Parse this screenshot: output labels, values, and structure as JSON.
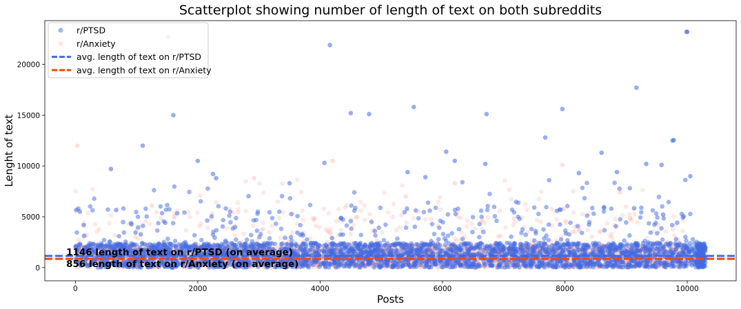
{
  "chart_data": {
    "type": "scatter",
    "title": "Scatterplot showing number of length of text on both subreddits",
    "xlabel": "Posts",
    "ylabel": "Lenght of text",
    "xlim": [
      -500,
      10800
    ],
    "ylim": [
      -1300,
      24300
    ],
    "x_ticks": [
      0,
      2000,
      4000,
      6000,
      8000,
      10000
    ],
    "y_ticks": [
      0,
      5000,
      10000,
      15000,
      20000
    ],
    "x_tick_labels": [
      "0",
      "2000",
      "4000",
      "6000",
      "8000",
      "10000"
    ],
    "y_tick_labels": [
      "0",
      "5000",
      "10000",
      "15000",
      "20000"
    ],
    "grid": false,
    "legend_position": "top-left",
    "series": [
      {
        "name": "r/PTSD",
        "kind": "scatter",
        "color": "#4169e1",
        "n_points": 10300,
        "notable_points": [
          [
            1520,
            22700
          ],
          [
            4160,
            21900
          ],
          [
            9990,
            23200
          ],
          [
            10000,
            23200
          ],
          [
            9170,
            17700
          ],
          [
            1600,
            15000
          ],
          [
            4500,
            15200
          ],
          [
            4800,
            15100
          ],
          [
            5530,
            15800
          ],
          [
            6720,
            15100
          ],
          [
            7960,
            15600
          ],
          [
            7680,
            12800
          ],
          [
            9760,
            12500
          ],
          [
            9780,
            12550
          ],
          [
            1100,
            12000
          ],
          [
            6060,
            11400
          ],
          [
            8600,
            11300
          ],
          [
            6200,
            10500
          ],
          [
            4070,
            10300
          ],
          [
            2000,
            10500
          ],
          [
            580,
            9700
          ],
          [
            6700,
            10200
          ],
          [
            9330,
            10200
          ],
          [
            9580,
            10100
          ],
          [
            10050,
            9000
          ],
          [
            2250,
            9200
          ],
          [
            5430,
            9400
          ],
          [
            8850,
            9400
          ],
          [
            8230,
            9300
          ],
          [
            2300,
            8800
          ],
          [
            3500,
            8300
          ],
          [
            5720,
            8900
          ]
        ]
      },
      {
        "name": "r/Anxiety",
        "kind": "scatter",
        "color": "#fa8072",
        "n_points": 10000,
        "notable_points": [
          [
            30,
            12000
          ],
          [
            4200,
            10500
          ],
          [
            7960,
            10100
          ],
          [
            2920,
            8800
          ],
          [
            6200,
            8300
          ],
          [
            1250,
            6100
          ],
          [
            8900,
            7400
          ],
          [
            5400,
            7000
          ]
        ]
      },
      {
        "name": "avg. length of text on r/PTSD",
        "kind": "hline",
        "color": "#4169e1",
        "value": 1146
      },
      {
        "name": "avg. length of text on r/Anxiety",
        "kind": "hline",
        "color": "#ff4500",
        "value": 856
      }
    ],
    "annotations": [
      {
        "text": "1146 length of text on r/PTSD (on average)",
        "x": -150,
        "y": 1146
      },
      {
        "text": "856 length of text on r/Anxiety (on average)",
        "x": -150,
        "y": 0
      }
    ]
  }
}
